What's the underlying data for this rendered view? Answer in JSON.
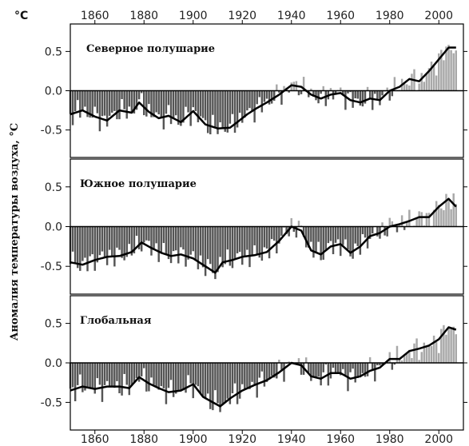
{
  "unit_label": "°C",
  "ylabel": "Аномалия температуры воздуха, °C",
  "colors": {
    "bar_negative": "#555555",
    "bar_positive": "#a8a8a8",
    "smooth_line": "#000000",
    "zero_line": "#000000",
    "frame": "#000000"
  },
  "chart_data": [
    {
      "type": "bar",
      "title": "Северное полушарие",
      "xlim": [
        1850,
        2010
      ],
      "ylim": [
        -0.85,
        0.85
      ],
      "yticks": [
        -0.5,
        0.0,
        0.5
      ],
      "ytick_labels": [
        "-0.5",
        "0.0",
        "0.5"
      ],
      "xticks": [
        1860,
        1880,
        1900,
        1920,
        1940,
        1960,
        1980,
        2000
      ],
      "xtick_labels": [
        "1860",
        "1880",
        "1900",
        "1920",
        "1940",
        "1960",
        "1980",
        "2000"
      ],
      "smooth_x": [
        1850,
        1855,
        1860,
        1865,
        1870,
        1875,
        1878,
        1882,
        1886,
        1890,
        1895,
        1900,
        1905,
        1910,
        1915,
        1918,
        1922,
        1926,
        1930,
        1935,
        1940,
        1944,
        1948,
        1952,
        1956,
        1960,
        1964,
        1968,
        1972,
        1976,
        1980,
        1984,
        1988,
        1992,
        1996,
        2000,
        2004,
        2007
      ],
      "smooth_y": [
        -0.3,
        -0.25,
        -0.33,
        -0.38,
        -0.25,
        -0.28,
        -0.15,
        -0.27,
        -0.35,
        -0.32,
        -0.4,
        -0.26,
        -0.43,
        -0.48,
        -0.47,
        -0.4,
        -0.3,
        -0.22,
        -0.15,
        -0.05,
        0.07,
        0.05,
        -0.05,
        -0.1,
        -0.05,
        -0.03,
        -0.12,
        -0.15,
        -0.1,
        -0.12,
        0.0,
        0.05,
        0.15,
        0.12,
        0.25,
        0.4,
        0.55,
        0.55
      ]
    },
    {
      "type": "bar",
      "title": "Южное полушарие",
      "xlim": [
        1850,
        2010
      ],
      "ylim": [
        -0.85,
        0.85
      ],
      "yticks": [
        -0.5,
        0.0,
        0.5
      ],
      "ytick_labels": [
        "-0.5",
        "0.0",
        "0.5"
      ],
      "xticks": [
        1860,
        1880,
        1900,
        1920,
        1940,
        1960,
        1980,
        2000
      ],
      "xtick_labels": [
        "1860",
        "1880",
        "1900",
        "1920",
        "1940",
        "1960",
        "1980",
        "2000"
      ],
      "smooth_x": [
        1850,
        1855,
        1860,
        1865,
        1870,
        1875,
        1879,
        1883,
        1887,
        1891,
        1895,
        1900,
        1905,
        1909,
        1912,
        1916,
        1920,
        1925,
        1930,
        1935,
        1940,
        1944,
        1948,
        1952,
        1956,
        1960,
        1964,
        1968,
        1972,
        1976,
        1980,
        1984,
        1988,
        1992,
        1996,
        2000,
        2004,
        2007
      ],
      "smooth_y": [
        -0.45,
        -0.48,
        -0.42,
        -0.38,
        -0.37,
        -0.32,
        -0.2,
        -0.27,
        -0.33,
        -0.37,
        -0.35,
        -0.4,
        -0.5,
        -0.58,
        -0.45,
        -0.42,
        -0.38,
        -0.36,
        -0.32,
        -0.18,
        0.0,
        -0.05,
        -0.3,
        -0.35,
        -0.25,
        -0.22,
        -0.33,
        -0.25,
        -0.12,
        -0.08,
        0.0,
        0.03,
        0.07,
        0.12,
        0.12,
        0.25,
        0.35,
        0.25
      ]
    },
    {
      "type": "bar",
      "title": "Глобальная",
      "xlim": [
        1850,
        2010
      ],
      "ylim": [
        -0.85,
        0.85
      ],
      "yticks": [
        -0.5,
        0.0,
        0.5
      ],
      "ytick_labels": [
        "-0.5",
        "0.0",
        "0.5"
      ],
      "xticks": [
        1860,
        1880,
        1900,
        1920,
        1940,
        1960,
        1980,
        2000
      ],
      "xtick_labels": [
        "1860",
        "1880",
        "1900",
        "1920",
        "1940",
        "1960",
        "1980",
        "2000"
      ],
      "smooth_x": [
        1850,
        1855,
        1860,
        1865,
        1870,
        1874,
        1878,
        1882,
        1886,
        1890,
        1895,
        1900,
        1904,
        1908,
        1911,
        1915,
        1920,
        1925,
        1930,
        1935,
        1940,
        1944,
        1948,
        1952,
        1956,
        1960,
        1964,
        1968,
        1972,
        1976,
        1980,
        1984,
        1988,
        1992,
        1996,
        2000,
        2004,
        2007
      ],
      "smooth_y": [
        -0.35,
        -0.3,
        -0.33,
        -0.3,
        -0.3,
        -0.32,
        -0.18,
        -0.26,
        -0.32,
        -0.37,
        -0.35,
        -0.27,
        -0.43,
        -0.5,
        -0.55,
        -0.45,
        -0.35,
        -0.28,
        -0.22,
        -0.12,
        0.0,
        -0.03,
        -0.17,
        -0.2,
        -0.13,
        -0.13,
        -0.2,
        -0.17,
        -0.1,
        -0.06,
        0.05,
        0.05,
        0.15,
        0.18,
        0.22,
        0.3,
        0.45,
        0.42
      ]
    }
  ]
}
